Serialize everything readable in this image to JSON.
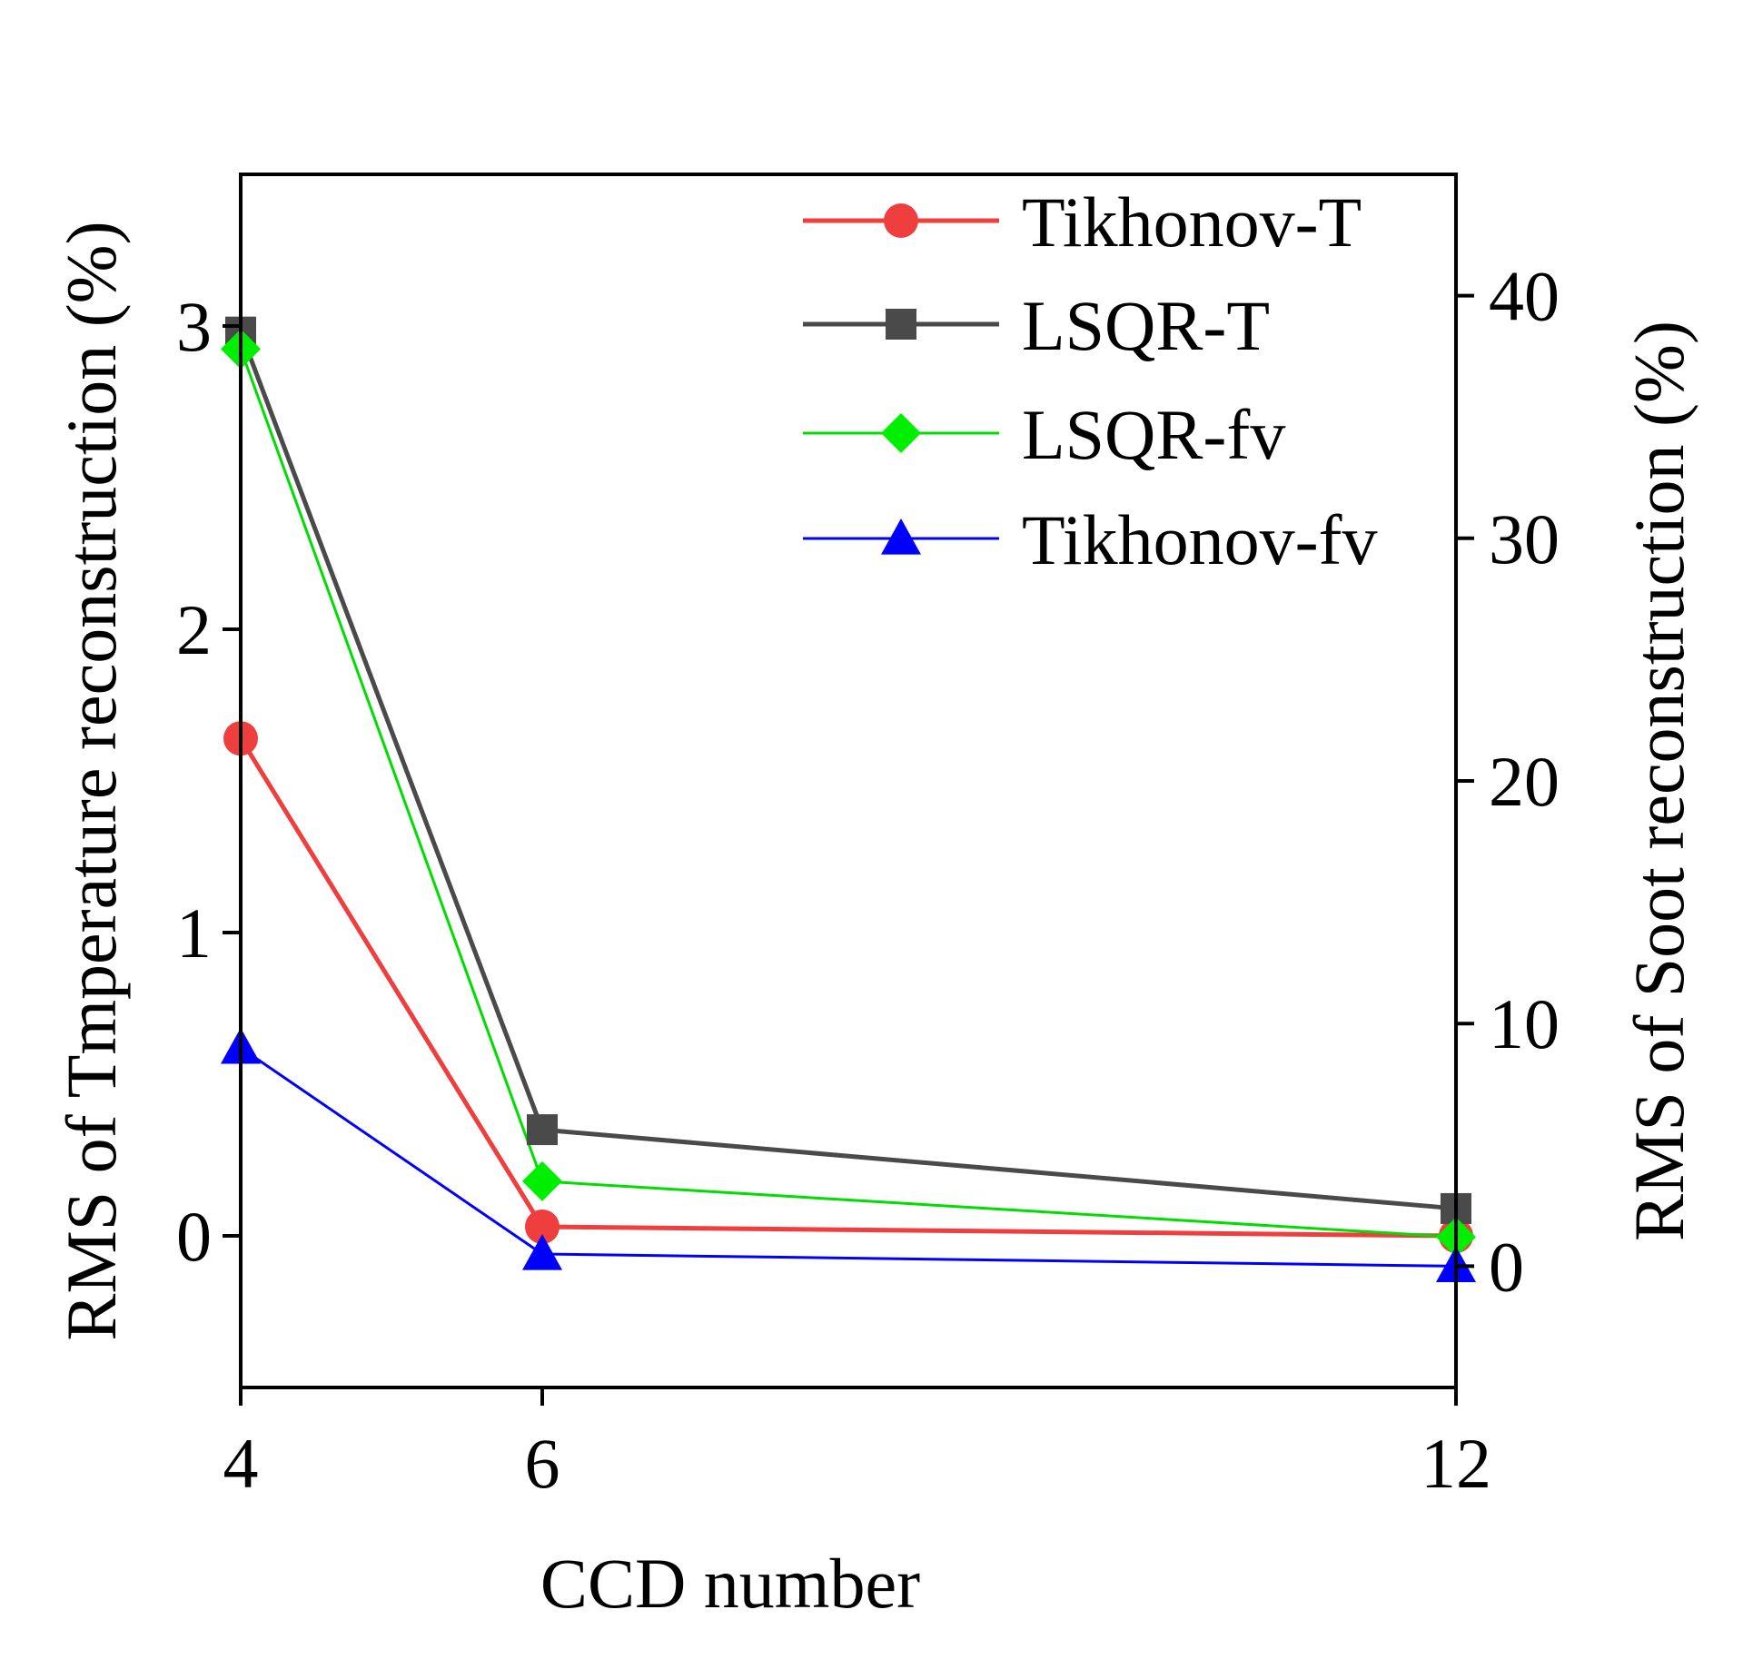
{
  "chart_data": {
    "type": "line",
    "title": "",
    "xlabel": "CCD number",
    "ylabel": "RMS of Tmperature reconstruction (%)",
    "y2label": "RMS of Soot reconstruction (%)",
    "x_categories": [
      "4",
      "6",
      "12"
    ],
    "ylim": [
      -0.5,
      3.5
    ],
    "y_ticks": [
      0,
      1,
      2,
      3
    ],
    "y_tick_labels": [
      "0",
      "1",
      "2",
      "3"
    ],
    "y2lim": [
      -5,
      45
    ],
    "y2_ticks": [
      0,
      10,
      20,
      30,
      40
    ],
    "y2_tick_labels": [
      "0",
      "10",
      "20",
      "30",
      "40"
    ],
    "grid": false,
    "legend_position": "top-right",
    "series": [
      {
        "name": "Tikhonov-T",
        "axis": "left",
        "marker": "circle",
        "color": "#ee3e3e",
        "values": [
          1.64,
          0.03,
          0.0
        ]
      },
      {
        "name": "LSQR-T",
        "axis": "left",
        "marker": "square",
        "color": "#4a4a4a",
        "values": [
          2.98,
          0.35,
          0.09
        ]
      },
      {
        "name": "LSQR-fv",
        "axis": "right",
        "marker": "diamond",
        "color": "#00ee00",
        "line_color": "#00dd00",
        "values": [
          37.8,
          3.5,
          1.2
        ]
      },
      {
        "name": "Tikhonov-fv",
        "axis": "right",
        "marker": "triangle",
        "color": "#0000ff",
        "values": [
          9.0,
          0.5,
          0.0
        ]
      }
    ]
  }
}
